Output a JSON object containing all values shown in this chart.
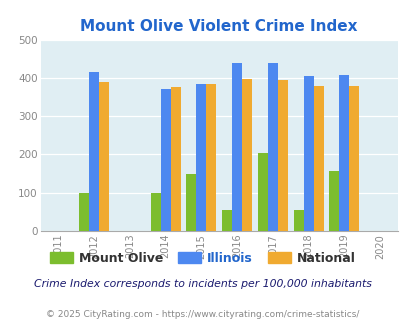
{
  "title": "Mount Olive Violent Crime Index",
  "years": [
    2012,
    2014,
    2015,
    2016,
    2017,
    2018,
    2019
  ],
  "mount_olive": [
    100,
    100,
    150,
    55,
    205,
    55,
    158
  ],
  "illinois": [
    415,
    370,
    385,
    438,
    438,
    405,
    408
  ],
  "national": [
    388,
    376,
    383,
    397,
    394,
    380,
    379
  ],
  "color_mount_olive": "#7cbd2e",
  "color_illinois": "#4d88f0",
  "color_national": "#f0aa30",
  "bg_color": "#e0eef3",
  "title_color": "#2266cc",
  "ylabel_max": 500,
  "yticks": [
    0,
    100,
    200,
    300,
    400,
    500
  ],
  "xlim_min": 2010.5,
  "xlim_max": 2020.5,
  "xlabel_years": [
    2011,
    2012,
    2013,
    2014,
    2015,
    2016,
    2017,
    2018,
    2019,
    2020
  ],
  "footnote1": "Crime Index corresponds to incidents per 100,000 inhabitants",
  "footnote2": "© 2025 CityRating.com - https://www.cityrating.com/crime-statistics/",
  "bar_width": 0.28,
  "legend_label_mo": "Mount Olive",
  "legend_label_il": "Illinois",
  "legend_label_na": "National",
  "legend_color_mo": "#333333",
  "legend_color_il": "#2266cc",
  "legend_color_na": "#333333",
  "footnote1_color": "#1a1a6e",
  "footnote2_color": "#888888"
}
